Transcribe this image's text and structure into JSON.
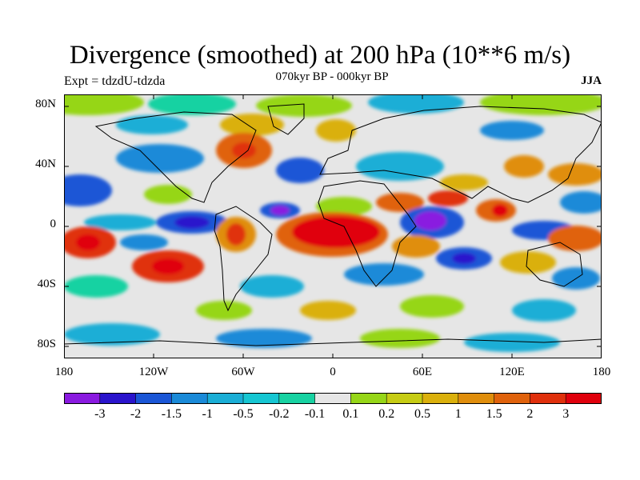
{
  "title": "Divergence (smoothed) at 200 hPa (10**6 m/s)",
  "left_label": "Expt = tdzdU-tdzda",
  "center_label": "070kyr BP - 000kyr BP",
  "right_label": "JJA",
  "lat_ticks": [
    "80N",
    "40N",
    "0",
    "40S",
    "80S"
  ],
  "lon_ticks": [
    "180",
    "120W",
    "60W",
    "0",
    "60E",
    "120E",
    "180"
  ],
  "colorbar": {
    "labels": [
      "-3",
      "-2",
      "-1.5",
      "-1",
      "-0.5",
      "-0.2",
      "-0.1",
      "0.1",
      "0.2",
      "0.5",
      "1",
      "1.5",
      "2",
      "3"
    ],
    "colors": [
      "#8a1ae0",
      "#2a14cc",
      "#1a56d6",
      "#1a8ad8",
      "#1aaed6",
      "#16c6d2",
      "#18d2a2",
      "#e6e6e6",
      "#96d618",
      "#c6cc14",
      "#dab00c",
      "#e08e0c",
      "#e0620c",
      "#e0300c",
      "#e0000c"
    ]
  },
  "colors": {
    "ocean_background": "#e6e6e6",
    "coastline": "#000000"
  }
}
